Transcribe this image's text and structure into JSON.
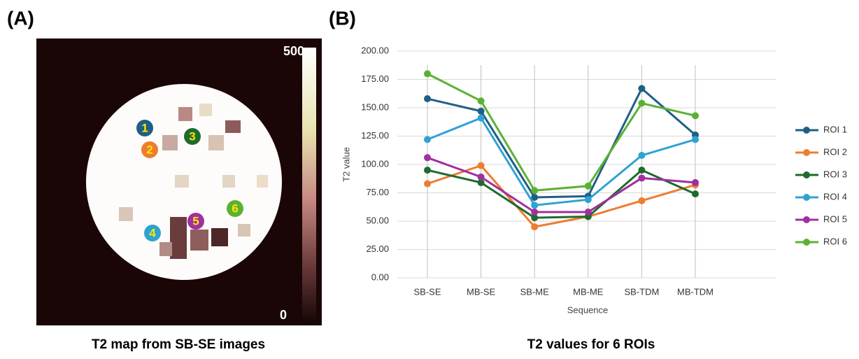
{
  "panel_a": {
    "label": "(A)",
    "caption": "T2 map from SB-SE images",
    "colorbar_max": 500,
    "colorbar_min": 0,
    "roi_labels": [
      "1",
      "2",
      "3",
      "4",
      "5",
      "6"
    ]
  },
  "panel_b_label": "(B)",
  "chart_data": {
    "type": "line",
    "title": "T2 values for 6 ROIs",
    "x_label": "Sequence",
    "y_label": "T2 value",
    "categories": [
      "SB-SE",
      "MB-SE",
      "SB-ME",
      "MB-ME",
      "SB-TDM",
      "MB-TDM"
    ],
    "series": [
      {
        "name": "ROI 1",
        "color": "#1f5f85",
        "values": [
          158,
          147,
          71,
          72,
          167,
          126
        ]
      },
      {
        "name": "ROI 2",
        "color": "#ed7d31",
        "values": [
          83,
          99,
          45,
          54,
          68,
          82
        ]
      },
      {
        "name": "ROI 3",
        "color": "#1e6b2e",
        "values": [
          95,
          84,
          53,
          54,
          95,
          74
        ]
      },
      {
        "name": "ROI 4",
        "color": "#2fa2d4",
        "values": [
          122,
          141,
          64,
          69,
          108,
          122
        ]
      },
      {
        "name": "ROI 5",
        "color": "#a0309f",
        "values": [
          106,
          89,
          58,
          58,
          88,
          84
        ]
      },
      {
        "name": "ROI 6",
        "color": "#5cb133",
        "values": [
          180,
          156,
          77,
          81,
          154,
          143
        ]
      }
    ],
    "ylim": [
      0,
      200
    ],
    "yticks": [
      {
        "value": 0,
        "label": "0.00"
      },
      {
        "value": 25,
        "label": "25.00"
      },
      {
        "value": 50,
        "label": "50.00"
      },
      {
        "value": 75,
        "label": "75.00"
      },
      {
        "value": 100,
        "label": "100.00"
      },
      {
        "value": 125,
        "label": "125.00"
      },
      {
        "value": 150,
        "label": "150.00"
      },
      {
        "value": 175,
        "label": "175.00"
      },
      {
        "value": 200,
        "label": "200.00"
      }
    ],
    "grid": true,
    "legend": "right"
  }
}
